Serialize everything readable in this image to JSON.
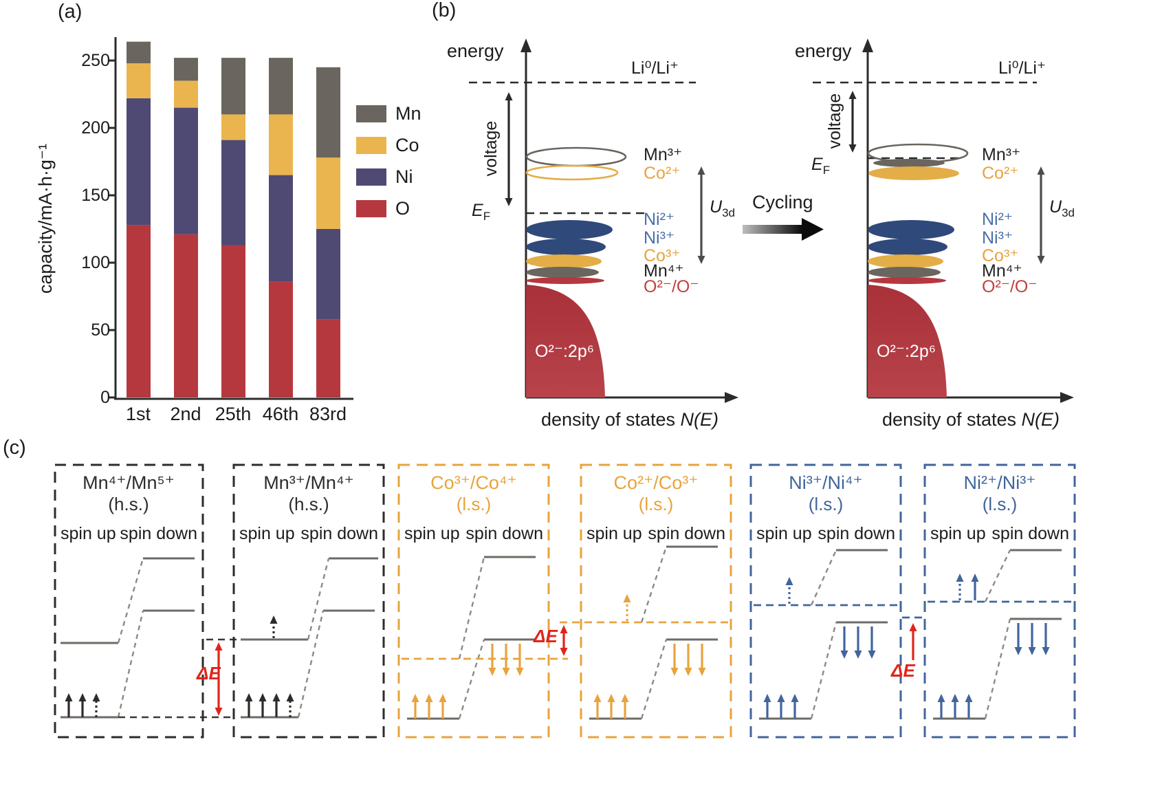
{
  "panel_labels": {
    "a": "(a)",
    "b": "(b)",
    "c": "(c)"
  },
  "chart_data": {
    "type": "bar",
    "stacked": true,
    "ylabel": "capacity/mA·h·g⁻¹",
    "categories": [
      "1st",
      "2nd",
      "25th",
      "46th",
      "83rd"
    ],
    "series": [
      {
        "name": "O",
        "color": "#b5383e",
        "values": [
          128,
          121,
          113,
          86,
          58
        ]
      },
      {
        "name": "Ni",
        "color": "#4f4a73",
        "values": [
          94,
          94,
          78,
          79,
          67
        ]
      },
      {
        "name": "Co",
        "color": "#eab54e",
        "values": [
          26,
          20,
          19,
          45,
          53
        ]
      },
      {
        "name": "Mn",
        "color": "#6b655f",
        "values": [
          16,
          17,
          42,
          42,
          67
        ]
      }
    ],
    "totals": [
      264,
      252,
      252,
      252,
      245
    ],
    "yticks": [
      0,
      50,
      100,
      150,
      200,
      250
    ],
    "ylim": [
      0,
      265
    ],
    "legend": [
      "Mn",
      "Co",
      "Ni",
      "O"
    ],
    "legend_position": "right"
  },
  "dos": {
    "energy_label": "energy",
    "li_label": "Li⁰/Li⁺",
    "voltage_label": "voltage",
    "ef": {
      "base": "E",
      "sub": "F"
    },
    "u3d": {
      "base": "U",
      "sub": "3d"
    },
    "cycling_label": "Cycling",
    "band_label": "O²⁻:2p⁶",
    "xaxis": {
      "prefix": "density of states ",
      "math": "N(E)"
    },
    "species": [
      {
        "label": "Mn³⁺",
        "color": "#222222"
      },
      {
        "label": "Co²⁺",
        "color": "#e8a33d"
      },
      {
        "label": "Ni²⁺",
        "color": "#4a6fa8"
      },
      {
        "label": "Ni³⁺",
        "color": "#4a6fa8"
      },
      {
        "label": "Co³⁺",
        "color": "#e8a33d"
      },
      {
        "label": "Mn⁴⁺",
        "color": "#222222"
      },
      {
        "label": "O²⁻/O⁻",
        "color": "#c2403c"
      }
    ]
  },
  "panel_c": {
    "delta_e": "ΔE",
    "delta_e_color": "#e0251b",
    "spin_up": "spin up",
    "spin_down": "spin down",
    "boxes": [
      {
        "title": "Mn⁴⁺/Mn⁵⁺",
        "state": "(h.s.)",
        "color": "#2e2c2a"
      },
      {
        "title": "Mn³⁺/Mn⁴⁺",
        "state": "(h.s.)",
        "color": "#2e2c2a"
      },
      {
        "title": "Co³⁺/Co⁴⁺",
        "state": "(l.s.)",
        "color": "#e8a33d"
      },
      {
        "title": "Co²⁺/Co³⁺",
        "state": "(l.s.)",
        "color": "#e8a33d"
      },
      {
        "title": "Ni³⁺/Ni⁴⁺",
        "state": "(l.s.)",
        "color": "#41659c"
      },
      {
        "title": "Ni²⁺/Ni³⁺",
        "state": "(l.s.)",
        "color": "#41659c"
      }
    ]
  }
}
